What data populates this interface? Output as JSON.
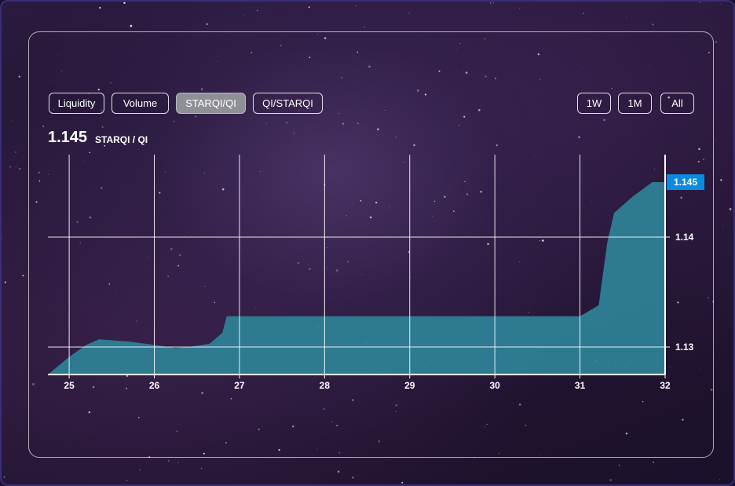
{
  "tabs": {
    "items": [
      "Liquidity",
      "Volume",
      "STARQI/QI",
      "QI/STARQI"
    ],
    "active": "STARQI/QI"
  },
  "ranges": {
    "items": [
      "1W",
      "1M",
      "All"
    ]
  },
  "price": {
    "value": "1.145",
    "pair": "STARQI / QI"
  },
  "colors": {
    "area_fill": "#2e7f96",
    "current_price_badge": "#0a8be0",
    "panel_border": "#ffffff",
    "active_tab": "#8f8f97"
  },
  "chart_data": {
    "type": "area",
    "x_ticks": [
      "25",
      "26",
      "27",
      "28",
      "29",
      "30",
      "31",
      "32"
    ],
    "y_ticks": [
      "1.13",
      "1.14"
    ],
    "current_value_label": "1.145",
    "xlim": [
      24.75,
      32
    ],
    "ylim": [
      1.1275,
      1.1475
    ],
    "y_axis_side": "right",
    "grid": true,
    "legend": "none",
    "points": [
      [
        24.75,
        1.1275
      ],
      [
        25.0,
        1.1291
      ],
      [
        25.2,
        1.1302
      ],
      [
        25.35,
        1.1307
      ],
      [
        25.7,
        1.1305
      ],
      [
        26.0,
        1.1302
      ],
      [
        26.25,
        1.1299
      ],
      [
        26.4,
        1.13
      ],
      [
        26.65,
        1.1303
      ],
      [
        26.8,
        1.1313
      ],
      [
        26.85,
        1.1328
      ],
      [
        27.2,
        1.1328
      ],
      [
        28.0,
        1.1328
      ],
      [
        29.0,
        1.1328
      ],
      [
        30.0,
        1.1328
      ],
      [
        31.0,
        1.1328
      ],
      [
        31.22,
        1.1338
      ],
      [
        31.32,
        1.1395
      ],
      [
        31.4,
        1.1422
      ],
      [
        31.62,
        1.1437
      ],
      [
        31.85,
        1.145
      ],
      [
        32.0,
        1.145
      ]
    ]
  }
}
